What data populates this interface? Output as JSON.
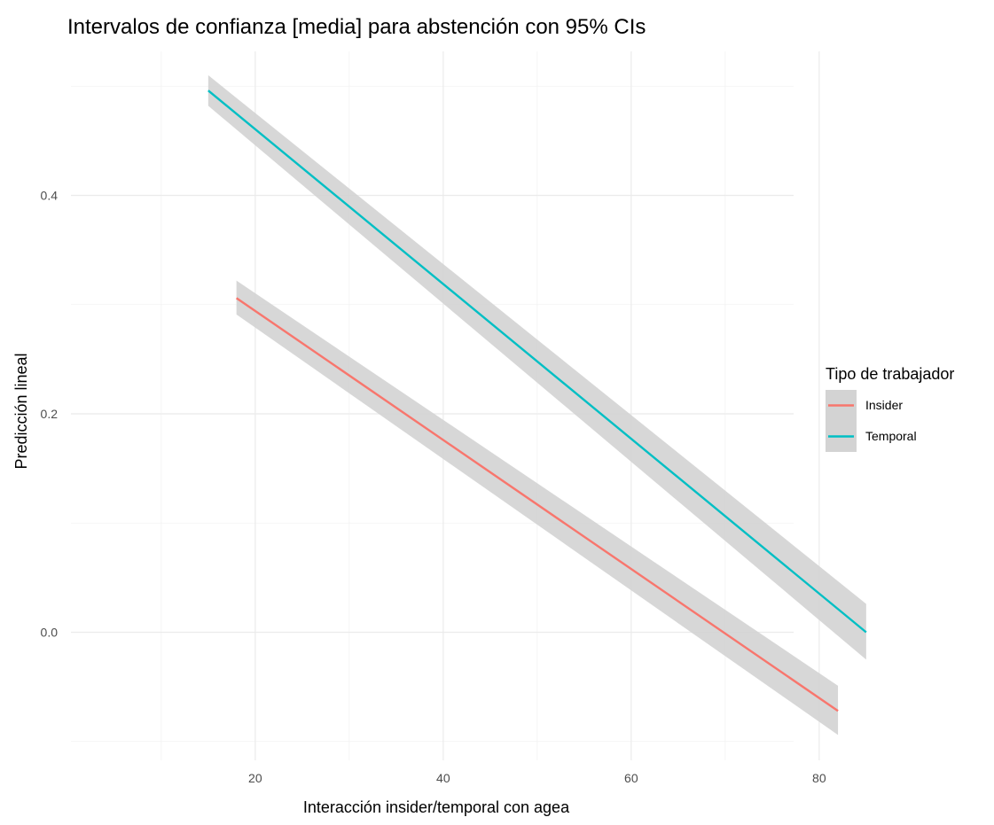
{
  "chart_data": {
    "type": "line",
    "title": "Intervalos de confianza [media] para abstención con 95% CIs",
    "xlabel": "Interacción insider/temporal con agea",
    "ylabel": "Predicción lineal",
    "xlim": [
      15,
      85
    ],
    "ylim": [
      -0.12,
      0.5
    ],
    "x_ticks": [
      20,
      40,
      60,
      80
    ],
    "x_tick_labels": [
      "20",
      "40",
      "60",
      "80"
    ],
    "y_ticks": [
      0.0,
      0.2,
      0.4
    ],
    "y_tick_labels": [
      "0.0",
      "0.2",
      "0.4"
    ],
    "grid": true,
    "legend": {
      "title": "Tipo de trabajador",
      "position": "right"
    },
    "series": [
      {
        "name": "Insider",
        "color": "#f8766d",
        "x": [
          18,
          82
        ],
        "y": [
          0.306,
          -0.072
        ],
        "ci_lower": [
          0.291,
          -0.094
        ],
        "ci_upper": [
          0.322,
          -0.049
        ]
      },
      {
        "name": "Temporal",
        "color": "#00bfc4",
        "x": [
          15,
          85
        ],
        "y": [
          0.496,
          0.0
        ],
        "ci_lower": [
          0.482,
          -0.025
        ],
        "ci_upper": [
          0.51,
          0.026
        ]
      }
    ],
    "ribbon_color": "#d3d3d3"
  }
}
